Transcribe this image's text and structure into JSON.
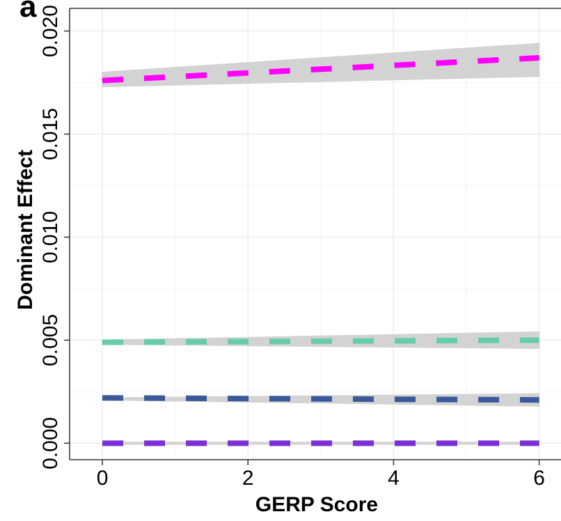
{
  "chart_data": {
    "type": "line",
    "panel_label": "a",
    "xlabel": "GERP Score",
    "ylabel": "Dominant Effect",
    "xlim": [
      -0.45,
      6.3
    ],
    "ylim": [
      -0.0008,
      0.0211
    ],
    "x_ticks": [
      0,
      2,
      4,
      6
    ],
    "x_tick_labels": [
      "0",
      "2",
      "4",
      "6"
    ],
    "y_ticks": [
      0.0,
      0.005,
      0.01,
      0.015,
      0.02
    ],
    "y_tick_labels": [
      "0.000",
      "0.005",
      "0.010",
      "0.015",
      "0.020"
    ],
    "grid": true,
    "legend": "none",
    "series": [
      {
        "color": "#FF00FF",
        "x": [
          0,
          6
        ],
        "y": [
          0.0176,
          0.0187
        ],
        "ci_lower": [
          0.0173,
          0.0178
        ],
        "ci_upper": [
          0.018,
          0.0194
        ]
      },
      {
        "color": "#66CDAA",
        "x": [
          0,
          6
        ],
        "y": [
          0.0049,
          0.005
        ],
        "ci_lower": [
          0.0048,
          0.0046
        ],
        "ci_upper": [
          0.005,
          0.0054
        ]
      },
      {
        "color": "#3B5998",
        "x": [
          0,
          6
        ],
        "y": [
          0.0022,
          0.0021
        ],
        "ci_lower": [
          0.0021,
          0.0018
        ],
        "ci_upper": [
          0.0022,
          0.0024
        ]
      },
      {
        "color": "#7B2FD4",
        "x": [
          0,
          6
        ],
        "y": [
          0.0,
          0.0
        ],
        "ci_lower": [
          -5e-05,
          -5e-05
        ],
        "ci_upper": [
          5e-05,
          5e-05
        ]
      }
    ],
    "ci_color": "#D3D3D3"
  }
}
